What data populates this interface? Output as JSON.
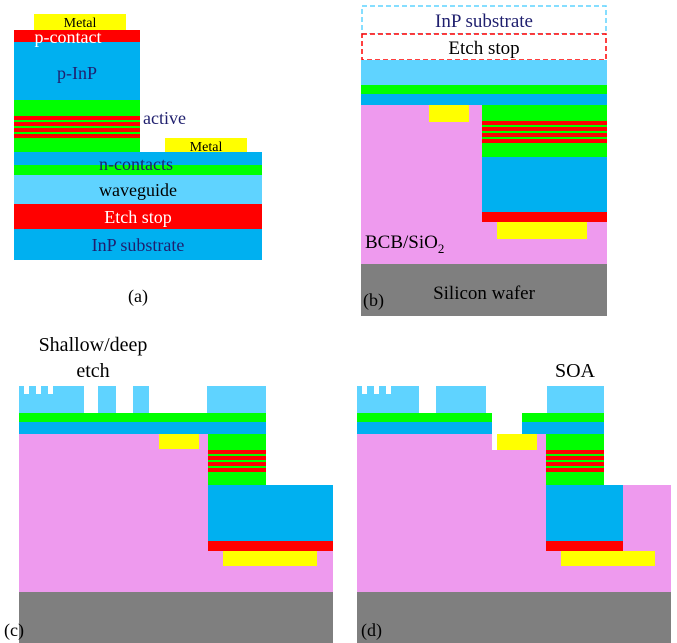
{
  "colors": {
    "metal": "#ffff00",
    "red": "#ff0000",
    "inp": "#00b0f0",
    "waveguide": "#5fd3ff",
    "green": "#00ff00",
    "bcb": "#ee9aee",
    "silicon": "#7f7f7f",
    "text_dark": "#1f1f6e",
    "text_white": "#ffffff",
    "text_black": "#000000",
    "dash_cyan": "#5fd3ff",
    "dash_red": "#ff0000"
  },
  "panel_a": {
    "metal_top": "Metal",
    "p_contact": "p-contact",
    "p_inp": "p-InP",
    "active": "active",
    "metal_side": "Metal",
    "n_contacts": "n-contacts",
    "waveguide": "waveguide",
    "etch_stop": "Etch stop",
    "substrate": "InP substrate",
    "caption": "(a)"
  },
  "panel_b": {
    "substrate": "InP substrate",
    "etch_stop": "Etch stop",
    "bcb_main": "BCB/SiO",
    "bcb_sub": "2",
    "silicon": "Silicon wafer",
    "caption": "(b)"
  },
  "panel_c": {
    "etch_line1": "Shallow/deep",
    "etch_line2": "etch",
    "caption": "(c)"
  },
  "panel_d": {
    "soa": "SOA",
    "caption": "(d)"
  }
}
